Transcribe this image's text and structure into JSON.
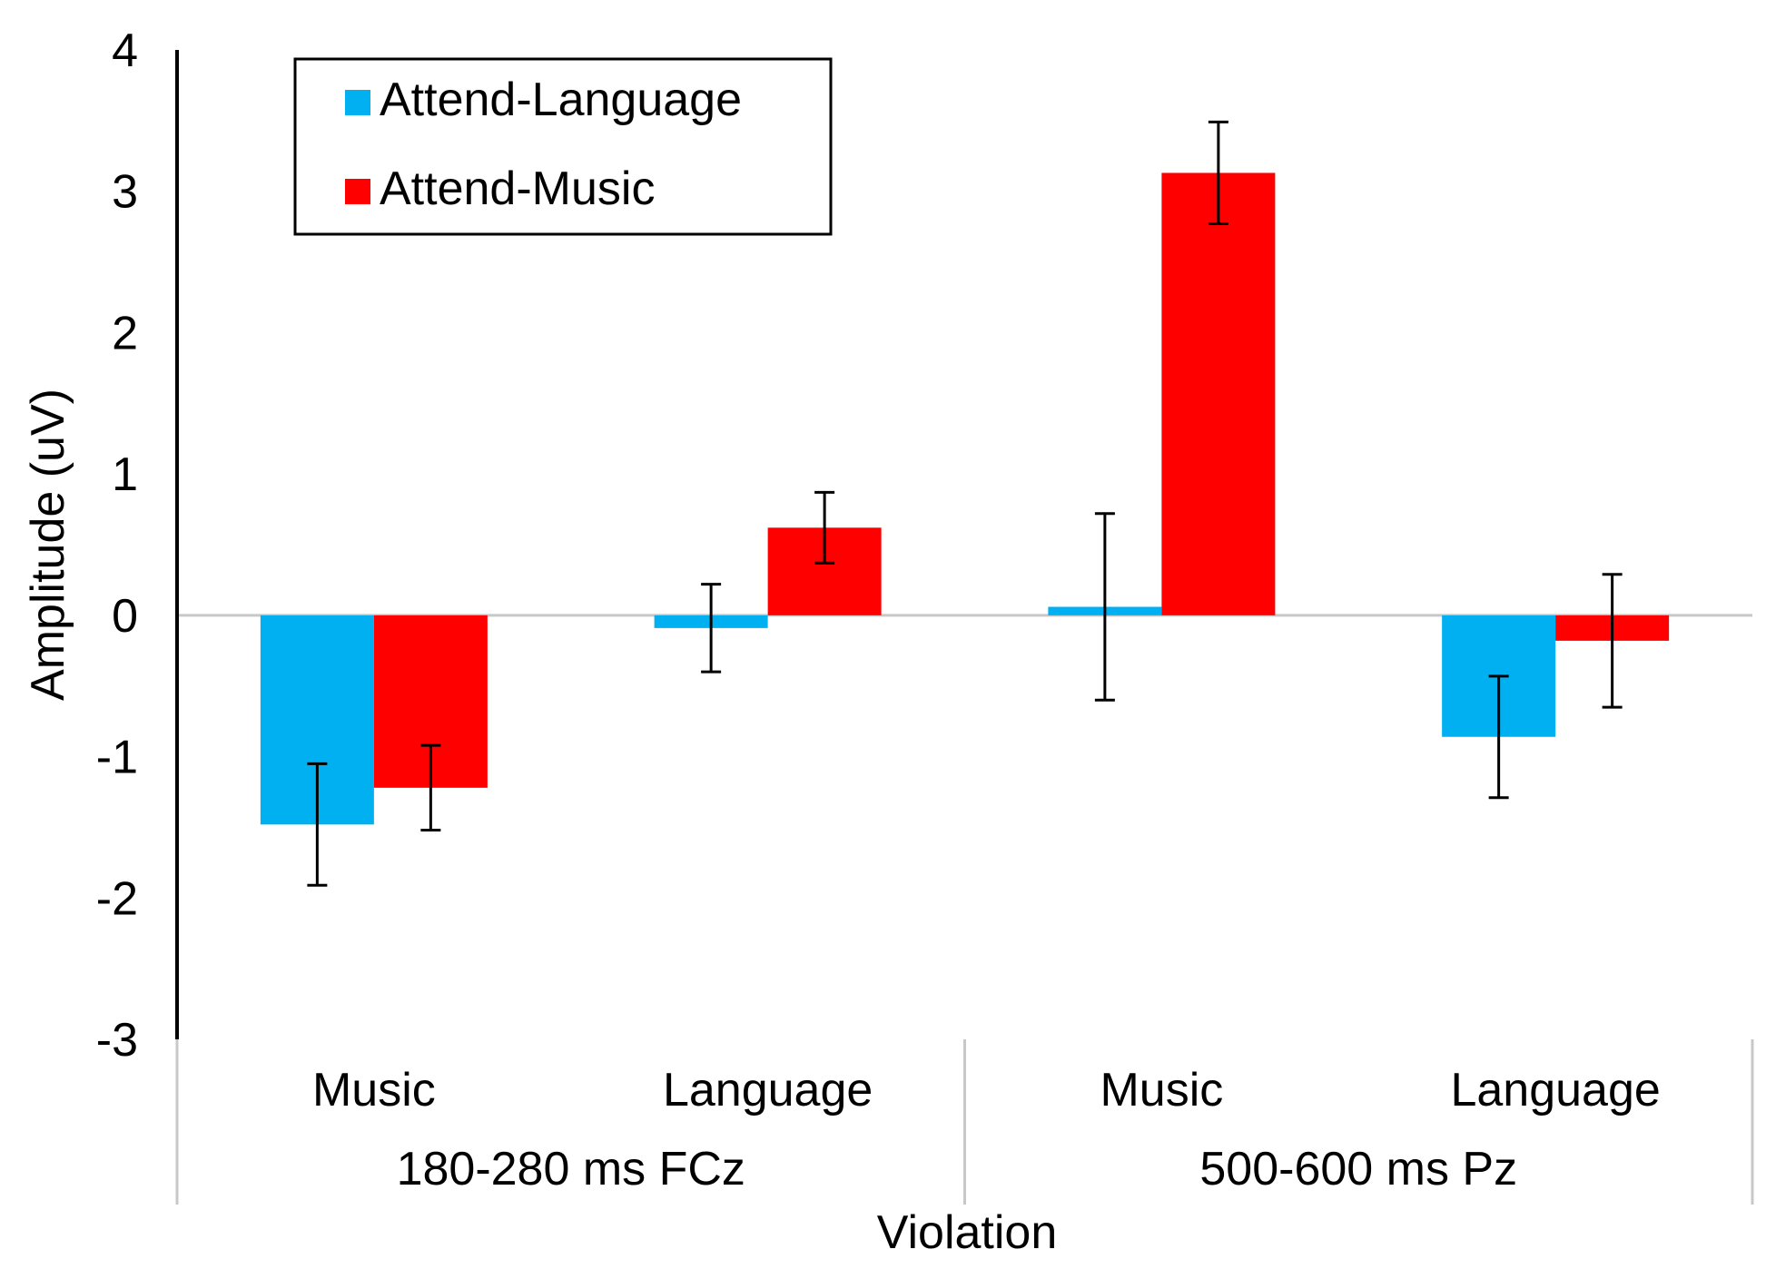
{
  "chart_data": {
    "type": "bar",
    "title": "",
    "xlabel": "Violation",
    "ylabel": "Amplitude (uV)",
    "ylim": [
      -3,
      4
    ],
    "yticks": [
      4,
      3,
      2,
      1,
      0,
      -1,
      -2,
      -3
    ],
    "categories": [
      {
        "label": "Music",
        "group": "180-280 ms FCz"
      },
      {
        "label": "Language",
        "group": "180-280 ms FCz"
      },
      {
        "label": "Music",
        "group": "500-600 ms Pz"
      },
      {
        "label": "Language",
        "group": "500-600 ms Pz"
      }
    ],
    "groups": [
      "180-280 ms FCz",
      "500-600 ms Pz"
    ],
    "series": [
      {
        "name": "Attend-Language",
        "color": "#00B0F0",
        "values": [
          -1.48,
          -0.09,
          0.06,
          -0.86
        ],
        "error": [
          0.43,
          0.31,
          0.66,
          0.43
        ]
      },
      {
        "name": "Attend-Music",
        "color": "#FF0000",
        "values": [
          -1.22,
          0.62,
          3.13,
          -0.18
        ],
        "error": [
          0.3,
          0.25,
          0.36,
          0.47
        ]
      }
    ],
    "legend": {
      "position": "top-left"
    }
  }
}
